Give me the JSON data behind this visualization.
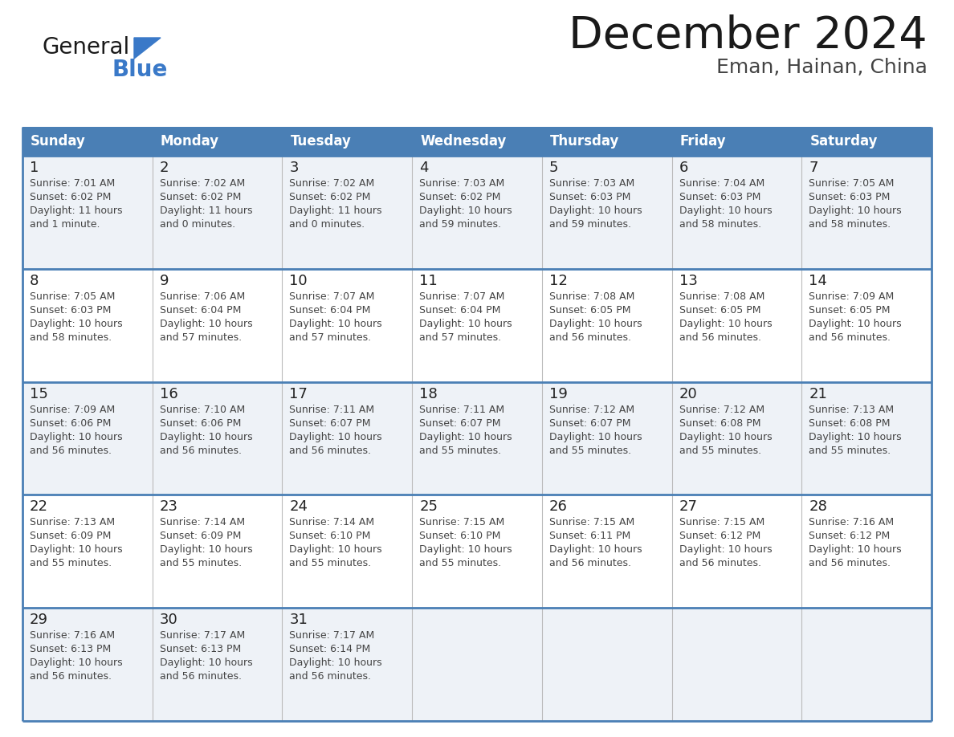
{
  "title": "December 2024",
  "subtitle": "Eman, Hainan, China",
  "days_of_week": [
    "Sunday",
    "Monday",
    "Tuesday",
    "Wednesday",
    "Thursday",
    "Friday",
    "Saturday"
  ],
  "header_bg_color": "#4A7FB5",
  "header_text_color": "#FFFFFF",
  "cell_bg_light": "#EEF2F7",
  "cell_bg_white": "#FFFFFF",
  "cell_border_color": "#4A7FB5",
  "row_sep_color": "#4A7FB5",
  "day_num_color": "#222222",
  "cell_text_color": "#444444",
  "title_color": "#1a1a1a",
  "subtitle_color": "#444444",
  "logo_general_color": "#1a1a1a",
  "logo_blue_color": "#3a79c8",
  "calendar_data": [
    {
      "week": 0,
      "bg": "light",
      "days": [
        {
          "day": 1,
          "sunrise": "7:01 AM",
          "sunset": "6:02 PM",
          "daylight_hours": 11,
          "daylight_minutes": 1
        },
        {
          "day": 2,
          "sunrise": "7:02 AM",
          "sunset": "6:02 PM",
          "daylight_hours": 11,
          "daylight_minutes": 0
        },
        {
          "day": 3,
          "sunrise": "7:02 AM",
          "sunset": "6:02 PM",
          "daylight_hours": 11,
          "daylight_minutes": 0
        },
        {
          "day": 4,
          "sunrise": "7:03 AM",
          "sunset": "6:02 PM",
          "daylight_hours": 10,
          "daylight_minutes": 59
        },
        {
          "day": 5,
          "sunrise": "7:03 AM",
          "sunset": "6:03 PM",
          "daylight_hours": 10,
          "daylight_minutes": 59
        },
        {
          "day": 6,
          "sunrise": "7:04 AM",
          "sunset": "6:03 PM",
          "daylight_hours": 10,
          "daylight_minutes": 58
        },
        {
          "day": 7,
          "sunrise": "7:05 AM",
          "sunset": "6:03 PM",
          "daylight_hours": 10,
          "daylight_minutes": 58
        }
      ]
    },
    {
      "week": 1,
      "bg": "white",
      "days": [
        {
          "day": 8,
          "sunrise": "7:05 AM",
          "sunset": "6:03 PM",
          "daylight_hours": 10,
          "daylight_minutes": 58
        },
        {
          "day": 9,
          "sunrise": "7:06 AM",
          "sunset": "6:04 PM",
          "daylight_hours": 10,
          "daylight_minutes": 57
        },
        {
          "day": 10,
          "sunrise": "7:07 AM",
          "sunset": "6:04 PM",
          "daylight_hours": 10,
          "daylight_minutes": 57
        },
        {
          "day": 11,
          "sunrise": "7:07 AM",
          "sunset": "6:04 PM",
          "daylight_hours": 10,
          "daylight_minutes": 57
        },
        {
          "day": 12,
          "sunrise": "7:08 AM",
          "sunset": "6:05 PM",
          "daylight_hours": 10,
          "daylight_minutes": 56
        },
        {
          "day": 13,
          "sunrise": "7:08 AM",
          "sunset": "6:05 PM",
          "daylight_hours": 10,
          "daylight_minutes": 56
        },
        {
          "day": 14,
          "sunrise": "7:09 AM",
          "sunset": "6:05 PM",
          "daylight_hours": 10,
          "daylight_minutes": 56
        }
      ]
    },
    {
      "week": 2,
      "bg": "light",
      "days": [
        {
          "day": 15,
          "sunrise": "7:09 AM",
          "sunset": "6:06 PM",
          "daylight_hours": 10,
          "daylight_minutes": 56
        },
        {
          "day": 16,
          "sunrise": "7:10 AM",
          "sunset": "6:06 PM",
          "daylight_hours": 10,
          "daylight_minutes": 56
        },
        {
          "day": 17,
          "sunrise": "7:11 AM",
          "sunset": "6:07 PM",
          "daylight_hours": 10,
          "daylight_minutes": 56
        },
        {
          "day": 18,
          "sunrise": "7:11 AM",
          "sunset": "6:07 PM",
          "daylight_hours": 10,
          "daylight_minutes": 55
        },
        {
          "day": 19,
          "sunrise": "7:12 AM",
          "sunset": "6:07 PM",
          "daylight_hours": 10,
          "daylight_minutes": 55
        },
        {
          "day": 20,
          "sunrise": "7:12 AM",
          "sunset": "6:08 PM",
          "daylight_hours": 10,
          "daylight_minutes": 55
        },
        {
          "day": 21,
          "sunrise": "7:13 AM",
          "sunset": "6:08 PM",
          "daylight_hours": 10,
          "daylight_minutes": 55
        }
      ]
    },
    {
      "week": 3,
      "bg": "white",
      "days": [
        {
          "day": 22,
          "sunrise": "7:13 AM",
          "sunset": "6:09 PM",
          "daylight_hours": 10,
          "daylight_minutes": 55
        },
        {
          "day": 23,
          "sunrise": "7:14 AM",
          "sunset": "6:09 PM",
          "daylight_hours": 10,
          "daylight_minutes": 55
        },
        {
          "day": 24,
          "sunrise": "7:14 AM",
          "sunset": "6:10 PM",
          "daylight_hours": 10,
          "daylight_minutes": 55
        },
        {
          "day": 25,
          "sunrise": "7:15 AM",
          "sunset": "6:10 PM",
          "daylight_hours": 10,
          "daylight_minutes": 55
        },
        {
          "day": 26,
          "sunrise": "7:15 AM",
          "sunset": "6:11 PM",
          "daylight_hours": 10,
          "daylight_minutes": 56
        },
        {
          "day": 27,
          "sunrise": "7:15 AM",
          "sunset": "6:12 PM",
          "daylight_hours": 10,
          "daylight_minutes": 56
        },
        {
          "day": 28,
          "sunrise": "7:16 AM",
          "sunset": "6:12 PM",
          "daylight_hours": 10,
          "daylight_minutes": 56
        }
      ]
    },
    {
      "week": 4,
      "bg": "light",
      "days": [
        {
          "day": 29,
          "sunrise": "7:16 AM",
          "sunset": "6:13 PM",
          "daylight_hours": 10,
          "daylight_minutes": 56
        },
        {
          "day": 30,
          "sunrise": "7:17 AM",
          "sunset": "6:13 PM",
          "daylight_hours": 10,
          "daylight_minutes": 56
        },
        {
          "day": 31,
          "sunrise": "7:17 AM",
          "sunset": "6:14 PM",
          "daylight_hours": 10,
          "daylight_minutes": 56
        },
        null,
        null,
        null,
        null
      ]
    }
  ]
}
